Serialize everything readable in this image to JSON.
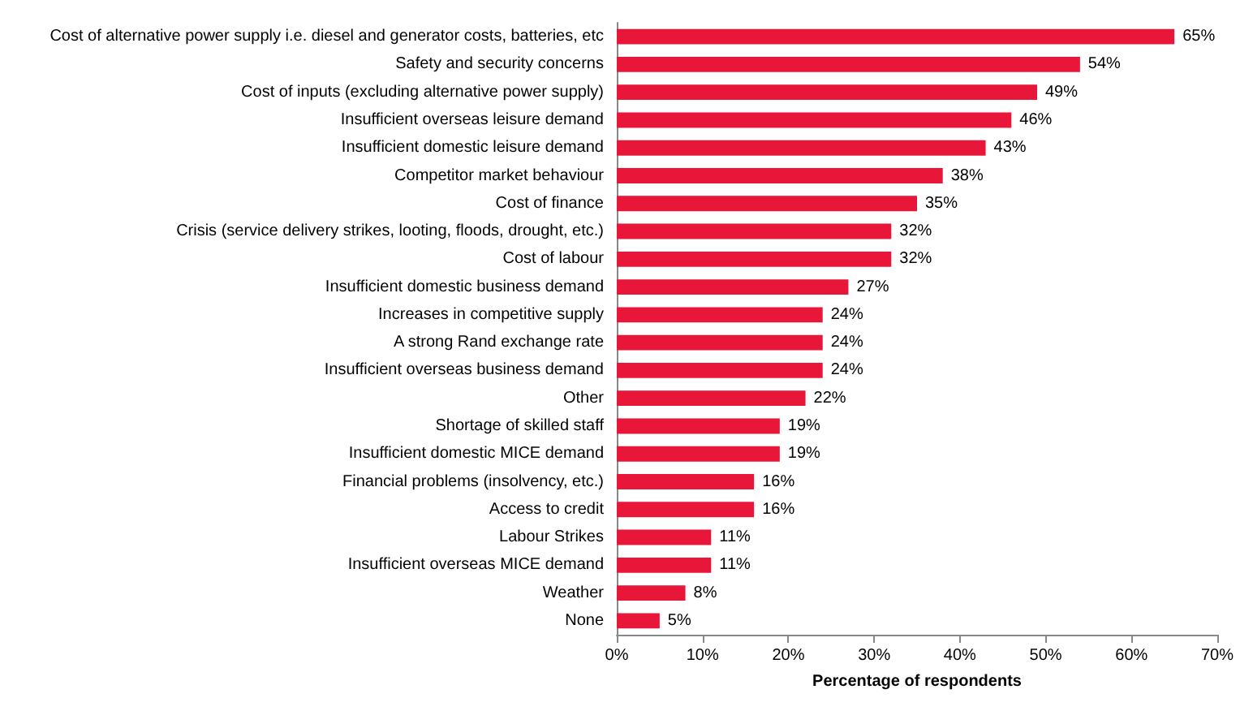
{
  "chart_data": {
    "type": "bar",
    "orientation": "horizontal",
    "xlabel": "Percentage of respondents",
    "categories": [
      "Cost of alternative power supply i.e. diesel and generator costs, batteries, etc",
      "Safety and security concerns",
      "Cost of inputs (excluding alternative power supply)",
      "Insufficient overseas leisure demand",
      "Insufficient domestic leisure demand",
      "Competitor market behaviour",
      "Cost of finance",
      "Crisis (service delivery strikes, looting, floods, drought, etc.)",
      "Cost of labour",
      "Insufficient domestic business demand",
      "Increases in competitive supply",
      "A strong Rand exchange rate",
      "Insufficient overseas business demand",
      "Other",
      "Shortage of skilled staff",
      "Insufficient domestic MICE demand",
      "Financial problems (insolvency, etc.)",
      "Access to credit",
      "Labour Strikes",
      "Insufficient overseas MICE demand",
      "Weather",
      "None"
    ],
    "values": [
      65,
      54,
      49,
      46,
      43,
      38,
      35,
      32,
      32,
      27,
      24,
      24,
      24,
      22,
      19,
      19,
      16,
      16,
      11,
      11,
      8,
      5
    ],
    "value_labels": [
      "65%",
      "54%",
      "49%",
      "46%",
      "43%",
      "38%",
      "35%",
      "32%",
      "32%",
      "27%",
      "24%",
      "24%",
      "24%",
      "22%",
      "19%",
      "19%",
      "16%",
      "16%",
      "11%",
      "11%",
      "8%",
      "5%"
    ],
    "color": "#e8173a",
    "xlim": [
      0,
      70
    ],
    "xticks": [
      {
        "value": 0,
        "label": "0%"
      },
      {
        "value": 10,
        "label": "10%"
      },
      {
        "value": 20,
        "label": "20%"
      },
      {
        "value": 30,
        "label": "30%"
      },
      {
        "value": 40,
        "label": "40%"
      },
      {
        "value": 50,
        "label": "50%"
      },
      {
        "value": 60,
        "label": "60%"
      },
      {
        "value": 70,
        "label": "70%"
      }
    ],
    "grid": false
  }
}
